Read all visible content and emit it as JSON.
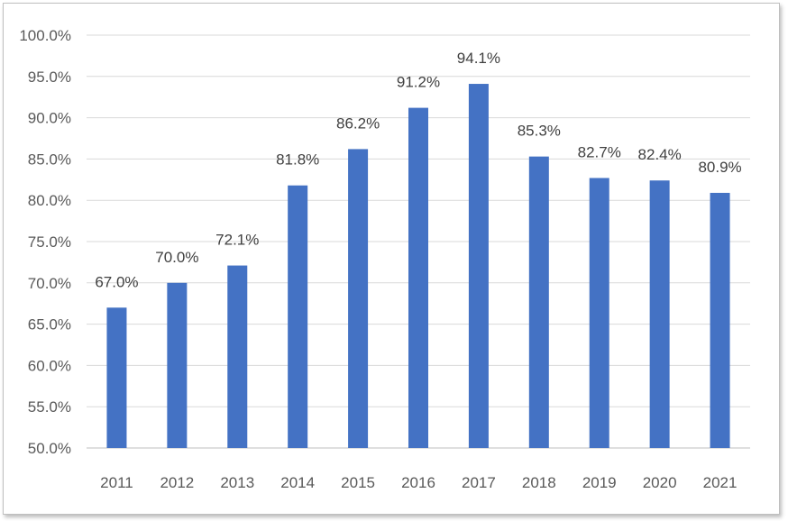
{
  "chart_data": {
    "type": "bar",
    "categories": [
      "2011",
      "2012",
      "2013",
      "2014",
      "2015",
      "2016",
      "2017",
      "2018",
      "2019",
      "2020",
      "2021"
    ],
    "values": [
      67.0,
      70.0,
      72.1,
      81.8,
      86.2,
      91.2,
      94.1,
      85.3,
      82.7,
      82.4,
      80.9
    ],
    "data_labels": [
      "67.0%",
      "70.0%",
      "72.1%",
      "81.8%",
      "86.2%",
      "91.2%",
      "94.1%",
      "85.3%",
      "82.7%",
      "82.4%",
      "80.9%"
    ],
    "y_ticks": [
      50,
      55,
      60,
      65,
      70,
      75,
      80,
      85,
      90,
      95,
      100
    ],
    "y_tick_labels": [
      "50.0%",
      "55.0%",
      "60.0%",
      "65.0%",
      "70.0%",
      "75.0%",
      "80.0%",
      "85.0%",
      "90.0%",
      "95.0%",
      "100.0%"
    ],
    "ylim": [
      50,
      100
    ],
    "title": "",
    "xlabel": "",
    "ylabel": "",
    "grid": true,
    "legend": "none",
    "colors": {
      "bar": "#4472C4",
      "grid": "#d9d9d9",
      "axis": "#bfbfbf",
      "text": "#595959"
    }
  }
}
